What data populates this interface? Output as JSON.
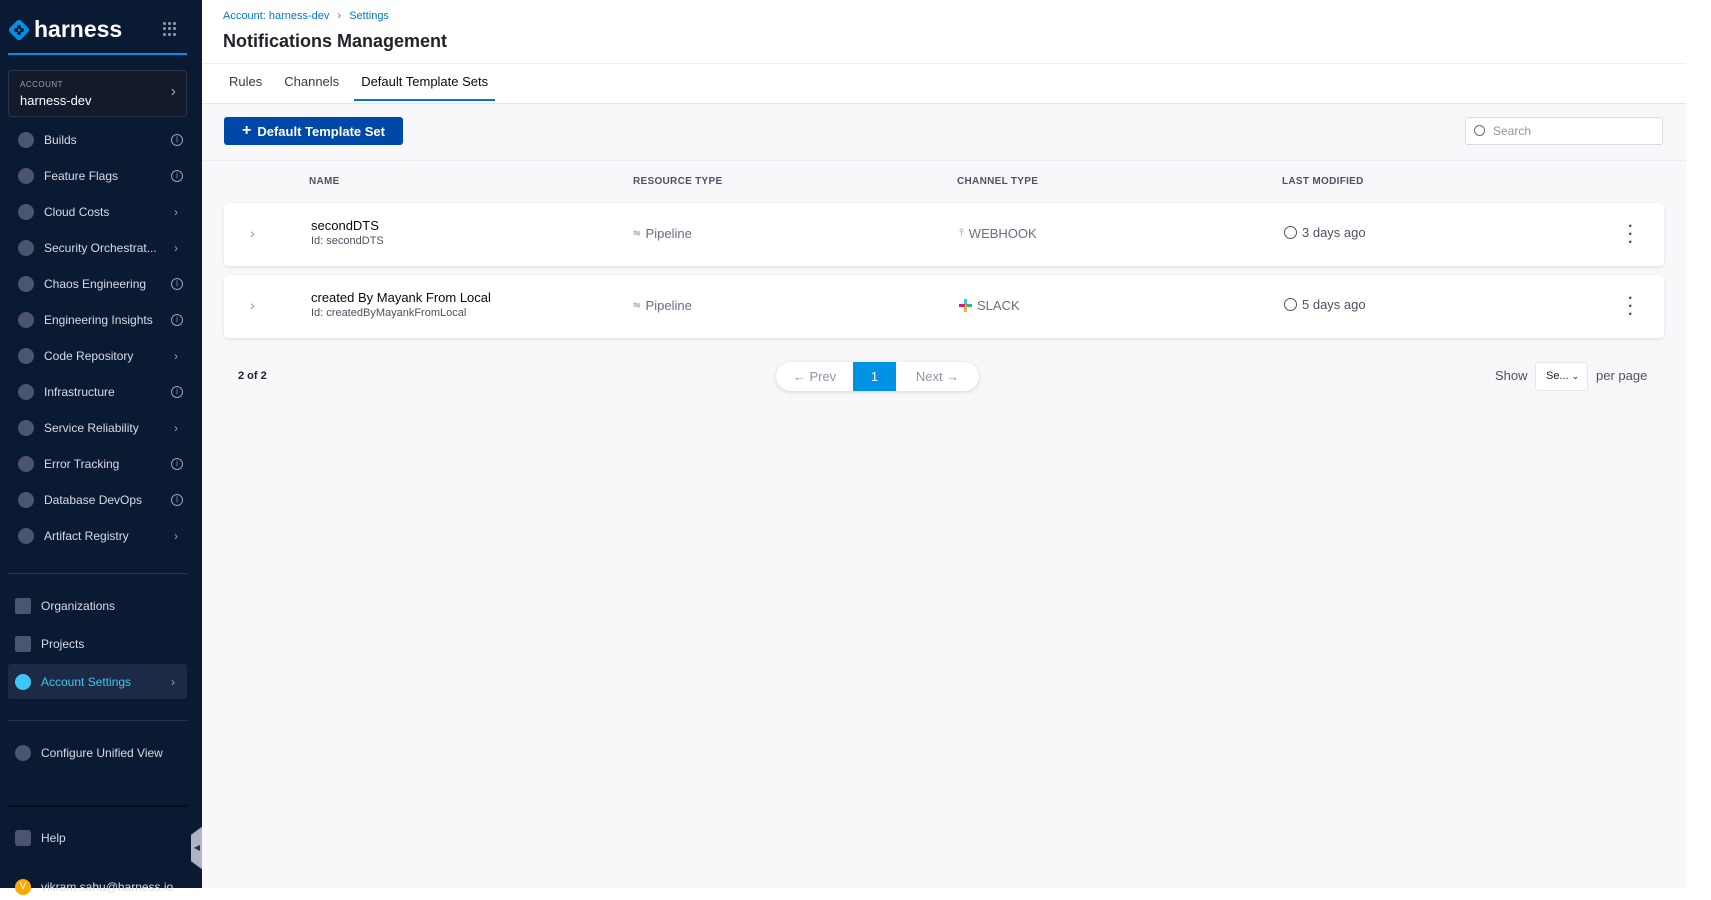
{
  "sidebar": {
    "brand": "harness",
    "account_label": "ACCOUNT",
    "account_name": "harness-dev",
    "modules": [
      {
        "label": "Builds",
        "trail": "info"
      },
      {
        "label": "Feature Flags",
        "trail": "info"
      },
      {
        "label": "Cloud Costs",
        "trail": "chevron"
      },
      {
        "label": "Security Orchestrat...",
        "trail": "chevron"
      },
      {
        "label": "Chaos Engineering",
        "trail": "info"
      },
      {
        "label": "Engineering Insights",
        "trail": "info"
      },
      {
        "label": "Code Repository",
        "trail": "chevron"
      },
      {
        "label": "Infrastructure",
        "trail": "info"
      },
      {
        "label": "Service Reliability",
        "trail": "chevron"
      },
      {
        "label": "Error Tracking",
        "trail": "info"
      },
      {
        "label": "Database DevOps",
        "trail": "info"
      },
      {
        "label": "Artifact Registry",
        "trail": "chevron"
      }
    ],
    "organizations": "Organizations",
    "projects": "Projects",
    "account_settings": "Account Settings",
    "configure": "Configure Unified View",
    "help": "Help",
    "user_email": "vikram.sahu@harness.io",
    "user_initial": "V"
  },
  "header": {
    "breadcrumb_account": "Account: harness-dev",
    "breadcrumb_settings": "Settings",
    "title": "Notifications Management"
  },
  "tabs": [
    {
      "label": "Rules"
    },
    {
      "label": "Channels"
    },
    {
      "label": "Default Template Sets",
      "active": true
    }
  ],
  "toolbar": {
    "add_label": "Default Template Set",
    "search_placeholder": "Search"
  },
  "table": {
    "columns": [
      "NAME",
      "RESOURCE TYPE",
      "CHANNEL TYPE",
      "LAST MODIFIED"
    ],
    "rows": [
      {
        "name": "secondDTS",
        "id": "Id: secondDTS",
        "resource": "Pipeline",
        "channel": "WEBHOOK",
        "channel_icon": "webhook-icon",
        "modified": "3 days ago"
      },
      {
        "name": "created By Mayank From Local",
        "id": "Id: createdByMayankFromLocal",
        "resource": "Pipeline",
        "channel": "SLACK",
        "channel_icon": "slack-icon",
        "modified": "5 days ago"
      }
    ]
  },
  "pagination": {
    "count": "2 of 2",
    "prev": "← Prev",
    "current": "1",
    "next": "Next →",
    "show": "Show",
    "per_page_value": "Se...",
    "per_page": "per page"
  },
  "colors": {
    "accent": "#0278d5",
    "button": "#0048a8",
    "sidebar": "#0b1a33",
    "page_active": "#0092e4"
  }
}
